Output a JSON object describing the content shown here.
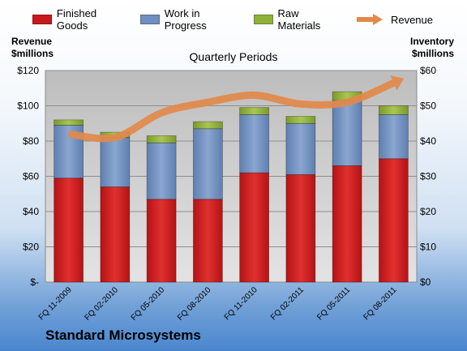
{
  "colors": {
    "finished_goods": "#c8191c",
    "work_in_progress": "#6f8fbf",
    "raw_materials": "#8fb13a",
    "revenue": "#e3894a",
    "plot_bg": "#c9c9c9"
  },
  "legend": [
    {
      "label": "Finished Goods",
      "color": "#c8191c",
      "kind": "box"
    },
    {
      "label": "Work in Progress",
      "color": "#6f8fbf",
      "kind": "box"
    },
    {
      "label": "Raw Materials",
      "color": "#8fb13a",
      "kind": "box"
    },
    {
      "label": "Revenue",
      "color": "#e3894a",
      "kind": "arrow"
    }
  ],
  "left_axis_title": [
    "Revenue",
    "$millions"
  ],
  "right_axis_title": [
    "Inventory",
    "$millions"
  ],
  "company": "Standard Microsystems",
  "chart_data": {
    "type": "bar",
    "subtitle": "Quarterly Periods",
    "categories": [
      "FQ 11-2009",
      "FQ 02-2010",
      "FQ 05-2010",
      "FQ 08-2010",
      "FQ 11-2010",
      "FQ 02-2011",
      "FQ 05-2011",
      "FQ 08-2011"
    ],
    "stacked": true,
    "series": [
      {
        "name": "Finished Goods",
        "axis": "right",
        "values": [
          29.5,
          27,
          23.5,
          23.5,
          31,
          30.5,
          33,
          35
        ]
      },
      {
        "name": "Work in Progress",
        "axis": "right",
        "values": [
          15,
          14,
          16,
          20,
          16.5,
          14.5,
          18.5,
          12.5
        ]
      },
      {
        "name": "Raw Materials",
        "axis": "right",
        "values": [
          1.5,
          1.5,
          2,
          2,
          2,
          2,
          2.5,
          2.5
        ]
      },
      {
        "name": "Revenue",
        "axis": "left",
        "type": "line",
        "values": [
          84,
          82,
          96,
          102,
          106,
          101,
          102,
          113
        ]
      }
    ],
    "left_axis": {
      "label": "Revenue $millions",
      "ylim": [
        0,
        120
      ],
      "ticks": [
        "$-",
        "$20",
        "$40",
        "$60",
        "$80",
        "$100",
        "$120"
      ]
    },
    "right_axis": {
      "label": "Inventory $millions",
      "ylim": [
        0,
        60
      ],
      "ticks": [
        "$0",
        "$10",
        "$20",
        "$30",
        "$40",
        "$50",
        "$60"
      ]
    },
    "grid": true,
    "legend_position": "top"
  }
}
